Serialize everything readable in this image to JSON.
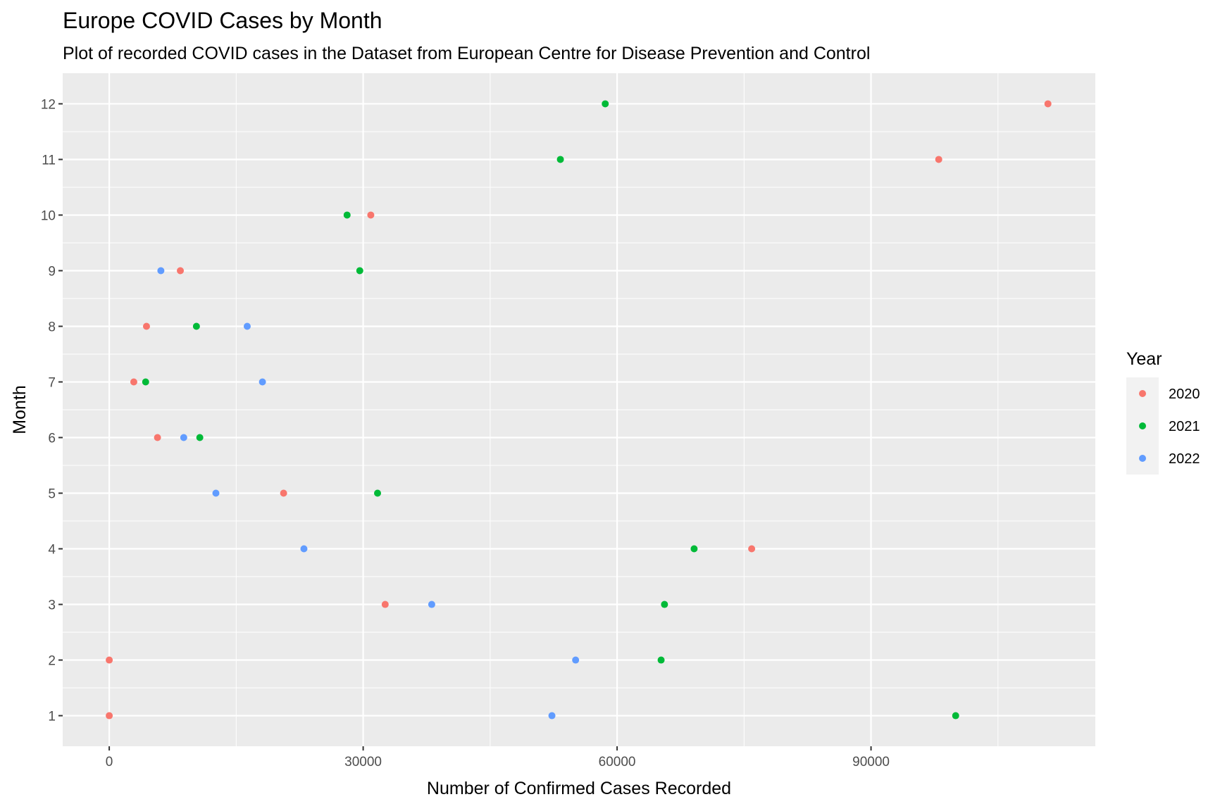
{
  "chart_data": {
    "type": "scatter",
    "title": "Europe COVID Cases by Month",
    "subtitle": "Plot of recorded COVID cases in the Dataset from European Centre for Disease Prevention and Control",
    "xlabel": "Number of Confirmed Cases Recorded",
    "ylabel": "Month",
    "xlim": [
      -5500,
      116500
    ],
    "ylim": [
      0.45,
      12.55
    ],
    "x_ticks": [
      0,
      30000,
      60000,
      90000
    ],
    "x_tick_labels": [
      "0",
      "30000",
      "60000",
      "90000"
    ],
    "y_ticks": [
      1,
      2,
      3,
      4,
      5,
      6,
      7,
      8,
      9,
      10,
      11,
      12
    ],
    "y_tick_labels": [
      "1",
      "2",
      "3",
      "4",
      "5",
      "6",
      "7",
      "8",
      "9",
      "10",
      "11",
      "12"
    ],
    "grid": true,
    "legend": {
      "title": "Year",
      "position": "right"
    },
    "series": [
      {
        "name": "2020",
        "color": "#F8766D",
        "points": [
          {
            "x": 0,
            "y": 1
          },
          {
            "x": 0,
            "y": 2
          },
          {
            "x": 32600,
            "y": 3
          },
          {
            "x": 75900,
            "y": 4
          },
          {
            "x": 20600,
            "y": 5
          },
          {
            "x": 5700,
            "y": 6
          },
          {
            "x": 2900,
            "y": 7
          },
          {
            "x": 4400,
            "y": 8
          },
          {
            "x": 8400,
            "y": 9
          },
          {
            "x": 30900,
            "y": 10
          },
          {
            "x": 98000,
            "y": 11
          },
          {
            "x": 110900,
            "y": 12
          }
        ]
      },
      {
        "name": "2021",
        "color": "#00BA38",
        "points": [
          {
            "x": 100000,
            "y": 1
          },
          {
            "x": 65200,
            "y": 2
          },
          {
            "x": 65600,
            "y": 3
          },
          {
            "x": 69100,
            "y": 4
          },
          {
            "x": 31700,
            "y": 5
          },
          {
            "x": 10700,
            "y": 6
          },
          {
            "x": 4300,
            "y": 7
          },
          {
            "x": 10300,
            "y": 8
          },
          {
            "x": 29600,
            "y": 9
          },
          {
            "x": 28100,
            "y": 10
          },
          {
            "x": 53300,
            "y": 11
          },
          {
            "x": 58600,
            "y": 12
          }
        ]
      },
      {
        "name": "2022",
        "color": "#619CFF",
        "points": [
          {
            "x": 52300,
            "y": 1
          },
          {
            "x": 55100,
            "y": 2
          },
          {
            "x": 38100,
            "y": 3
          },
          {
            "x": 23000,
            "y": 4
          },
          {
            "x": 12600,
            "y": 5
          },
          {
            "x": 8800,
            "y": 6
          },
          {
            "x": 18100,
            "y": 7
          },
          {
            "x": 16300,
            "y": 8
          },
          {
            "x": 6100,
            "y": 9
          }
        ]
      }
    ]
  }
}
